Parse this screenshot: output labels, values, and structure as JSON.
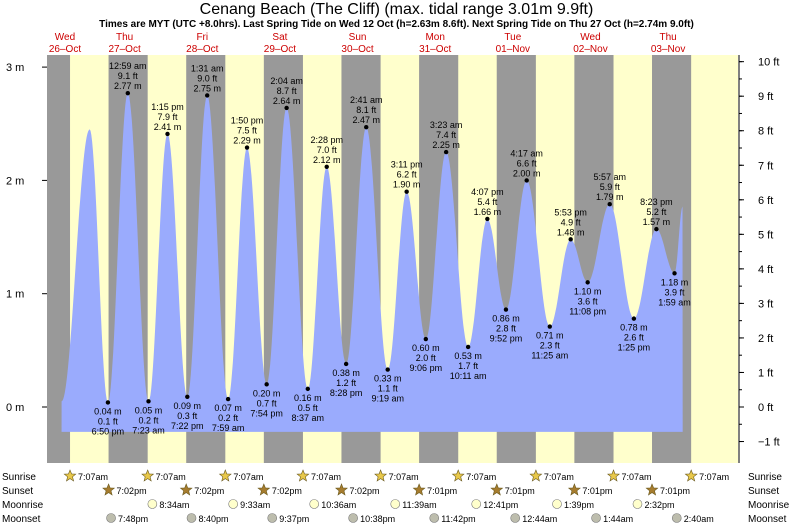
{
  "title": "Cenang Beach (The Cliff) (max. tidal range 3.01m 9.9ft)",
  "subtitle": "Times are MYT (UTC +8.0hrs). Last Spring Tide on Wed 12 Oct (h=2.63m 8.6ft). Next Spring Tide on Thu 27 Oct (h=2.74m 9.0ft)",
  "colors": {
    "day": "#ffffcc",
    "night": "#999999",
    "tide": "#9aabfd",
    "label": "#cc0000",
    "sun": "#e8c84a",
    "sunset": "#a67c2e",
    "moonrise": "#ffffcc",
    "moonset": "#bdbdad"
  },
  "days": [
    {
      "dow": "Wed",
      "date": "26–Oct"
    },
    {
      "dow": "Thu",
      "date": "27–Oct"
    },
    {
      "dow": "Fri",
      "date": "28–Oct"
    },
    {
      "dow": "Sat",
      "date": "29–Oct"
    },
    {
      "dow": "Sun",
      "date": "30–Oct"
    },
    {
      "dow": "Mon",
      "date": "31–Oct"
    },
    {
      "dow": "Tue",
      "date": "01–Nov"
    },
    {
      "dow": "Wed",
      "date": "02–Nov"
    },
    {
      "dow": "Thu",
      "date": "03–Nov"
    }
  ],
  "rows": {
    "sunrise": "Sunrise",
    "sunset": "Sunset",
    "moonrise": "Moonrise",
    "moonset": "Moonset"
  },
  "events": {
    "sunrise": [
      "7:07am",
      "7:07am",
      "7:07am",
      "7:07am",
      "7:07am",
      "7:07am",
      "7:07am",
      "7:07am",
      "7:07am"
    ],
    "sunset": [
      "7:02pm",
      "7:02pm",
      "7:02pm",
      "7:02pm",
      "7:01pm",
      "7:01pm",
      "7:01pm",
      "7:01pm"
    ],
    "moonrise": [
      "8:34am",
      "9:33am",
      "10:36am",
      "11:39am",
      "12:41pm",
      "1:39pm",
      "2:32pm"
    ],
    "moonset": [
      "7:48pm",
      "8:40pm",
      "9:37pm",
      "10:38pm",
      "11:42pm",
      "12:44am",
      "1:44am",
      "2:40am"
    ]
  },
  "chart_data": {
    "type": "area",
    "title": "Cenang Beach (The Cliff) (max. tidal range 3.01m 9.9ft)",
    "x_unit": "hours since 00:00 26-Oct (MYT)",
    "y_unit": "m",
    "ylim": [
      -0.35,
      3.1
    ],
    "y_ticks_m": [
      "0 m",
      "1 m",
      "2 m",
      "3 m"
    ],
    "y_ticks_ft": [
      "−1 ft",
      "0 ft",
      "1 ft",
      "2 ft",
      "3 ft",
      "4 ft",
      "5 ft",
      "6 ft",
      "7 ft",
      "8 ft",
      "9 ft",
      "10 ft"
    ],
    "night_spans_hours": [
      [
        0,
        7.12
      ],
      [
        19.03,
        31.12
      ],
      [
        43.03,
        55.12
      ],
      [
        67.03,
        79.12
      ],
      [
        91.02,
        103.12
      ],
      [
        115.02,
        127.12
      ],
      [
        139.02,
        151.12
      ],
      [
        163.02,
        175.12
      ],
      [
        187.02,
        199.12
      ]
    ],
    "extremes": [
      {
        "h": 13.2,
        "m": 2.45,
        "labels": []
      },
      {
        "h": 18.83,
        "m": 0.04,
        "labels": [
          "0.04 m",
          "0.1 ft",
          "6:50 pm"
        ],
        "pos": "below"
      },
      {
        "h": 24.98,
        "m": 2.77,
        "labels": [
          "12:59 am",
          "9.1 ft",
          "2.77 m"
        ],
        "pos": "above"
      },
      {
        "h": 31.38,
        "m": 0.05,
        "labels": [
          "0.05 m",
          "0.2 ft",
          "7:23 am"
        ],
        "pos": "below"
      },
      {
        "h": 37.25,
        "m": 2.41,
        "labels": [
          "1:15 pm",
          "7.9 ft",
          "2.41 m"
        ],
        "pos": "above"
      },
      {
        "h": 43.37,
        "m": 0.09,
        "labels": [
          "0.09 m",
          "0.3 ft",
          "7:22 pm"
        ],
        "pos": "below"
      },
      {
        "h": 49.52,
        "m": 2.75,
        "labels": [
          "1:31 am",
          "9.0 ft",
          "2.75 m"
        ],
        "pos": "above"
      },
      {
        "h": 55.98,
        "m": 0.07,
        "labels": [
          "0.07 m",
          "0.2 ft",
          "7:59 am"
        ],
        "pos": "below"
      },
      {
        "h": 61.83,
        "m": 2.29,
        "labels": [
          "1:50 pm",
          "7.5 ft",
          "2.29 m"
        ],
        "pos": "above"
      },
      {
        "h": 67.9,
        "m": 0.2,
        "labels": [
          "0.20 m",
          "0.7 ft",
          "7:54 pm"
        ],
        "pos": "below"
      },
      {
        "h": 74.07,
        "m": 2.64,
        "labels": [
          "2:04 am",
          "8.7 ft",
          "2.64 m"
        ],
        "pos": "above"
      },
      {
        "h": 80.62,
        "m": 0.16,
        "labels": [
          "0.16 m",
          "0.5 ft",
          "8:37 am"
        ],
        "pos": "below"
      },
      {
        "h": 86.47,
        "m": 2.12,
        "labels": [
          "2:28 pm",
          "7.0 ft",
          "2.12 m"
        ],
        "pos": "above"
      },
      {
        "h": 92.47,
        "m": 0.38,
        "labels": [
          "0.38 m",
          "1.2 ft",
          "8:28 pm"
        ],
        "pos": "below"
      },
      {
        "h": 98.68,
        "m": 2.47,
        "labels": [
          "2:41 am",
          "8.1 ft",
          "2.47 m"
        ],
        "pos": "above"
      },
      {
        "h": 105.32,
        "m": 0.33,
        "labels": [
          "0.33 m",
          "1.1 ft",
          "9:19 am"
        ],
        "pos": "below"
      },
      {
        "h": 111.18,
        "m": 1.9,
        "labels": [
          "3:11 pm",
          "6.2 ft",
          "1.90 m"
        ],
        "pos": "above"
      },
      {
        "h": 117.1,
        "m": 0.6,
        "labels": [
          "0.60 m",
          "2.0 ft",
          "9:06 pm"
        ],
        "pos": "below"
      },
      {
        "h": 123.38,
        "m": 2.25,
        "labels": [
          "3:23 am",
          "7.4 ft",
          "2.25 m"
        ],
        "pos": "above"
      },
      {
        "h": 130.18,
        "m": 0.53,
        "labels": [
          "0.53 m",
          "1.7 ft",
          "10:11 am"
        ],
        "pos": "below"
      },
      {
        "h": 136.12,
        "m": 1.66,
        "labels": [
          "4:07 pm",
          "5.4 ft",
          "1.66 m"
        ],
        "pos": "above"
      },
      {
        "h": 141.87,
        "m": 0.86,
        "labels": [
          "0.86 m",
          "2.8 ft",
          "9:52 pm"
        ],
        "pos": "below"
      },
      {
        "h": 148.28,
        "m": 2.0,
        "labels": [
          "4:17 am",
          "6.6 ft",
          "2.00 m"
        ],
        "pos": "above"
      },
      {
        "h": 155.42,
        "m": 0.71,
        "labels": [
          "0.71 m",
          "2.3 ft",
          "11:25 am"
        ],
        "pos": "below"
      },
      {
        "h": 161.88,
        "m": 1.48,
        "labels": [
          "5:53 pm",
          "4.9 ft",
          "1.48 m"
        ],
        "pos": "above"
      },
      {
        "h": 167.13,
        "m": 1.1,
        "labels": [
          "1.10 m",
          "3.6 ft",
          "11:08 pm"
        ],
        "pos": "below"
      },
      {
        "h": 173.95,
        "m": 1.79,
        "labels": [
          "5:57 am",
          "5.9 ft",
          "1.79 m"
        ],
        "pos": "above"
      },
      {
        "h": 181.42,
        "m": 0.78,
        "labels": [
          "0.78 m",
          "2.6 ft",
          "1:25 pm"
        ],
        "pos": "below"
      },
      {
        "h": 188.38,
        "m": 1.57,
        "labels": [
          "8:23 pm",
          "5.2 ft",
          "1.57 m"
        ],
        "pos": "above"
      },
      {
        "h": 193.98,
        "m": 1.18,
        "labels": [
          "1.18 m",
          "3.9 ft",
          "1:59 am"
        ],
        "pos": "below"
      },
      {
        "h": 196.5,
        "m": 1.77,
        "labels": []
      }
    ],
    "tide_start_h": 4.5,
    "tide_end_h": 196.5
  }
}
